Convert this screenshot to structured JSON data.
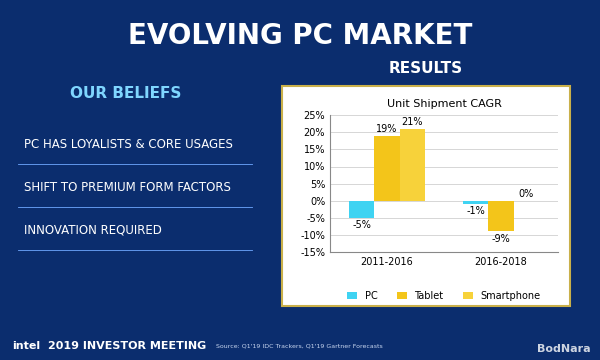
{
  "slide": {
    "title": "EVOLVING PC MARKET",
    "left_heading": "OUR BELIEFS",
    "beliefs": [
      "PC HAS LOYALISTS & CORE USAGES",
      "SHIFT TO PREMIUM FORM FACTORS",
      "INNOVATION REQUIRED"
    ],
    "right_heading": "RESULTS",
    "logo": "intel",
    "event": "2019 INVESTOR MEETING",
    "source": "Source: Q1'19 IDC Trackers, Q1'19 Gartner Forecasts",
    "watermark": "BodNara"
  },
  "chart_data": {
    "type": "bar",
    "title": "Unit Shipment CAGR",
    "categories": [
      "2011-2016",
      "2016-2018"
    ],
    "series": [
      {
        "name": "PC",
        "color": "#3fd3f2",
        "values": [
          -5,
          -1
        ],
        "value_labels": [
          "-5%",
          "-1%"
        ]
      },
      {
        "name": "Tablet",
        "color": "#f3c51a",
        "values": [
          19,
          -9
        ],
        "value_labels": [
          "19%",
          "-9%"
        ]
      },
      {
        "name": "Smartphone",
        "color": "#f7d23a",
        "values": [
          21,
          0
        ],
        "value_labels": [
          "21%",
          "0%"
        ]
      }
    ],
    "ylim": [
      -15,
      25
    ],
    "yticks": [
      {
        "value": -15,
        "label": "-15%"
      },
      {
        "value": -10,
        "label": "-10%"
      },
      {
        "value": -5,
        "label": "-5%"
      },
      {
        "value": 0,
        "label": "0%"
      },
      {
        "value": 5,
        "label": "5%"
      },
      {
        "value": 10,
        "label": "10%"
      },
      {
        "value": 15,
        "label": "15%"
      },
      {
        "value": 20,
        "label": "20%"
      },
      {
        "value": 25,
        "label": "25%"
      }
    ],
    "grid": true,
    "legend": "lower center",
    "data_labels": true
  }
}
